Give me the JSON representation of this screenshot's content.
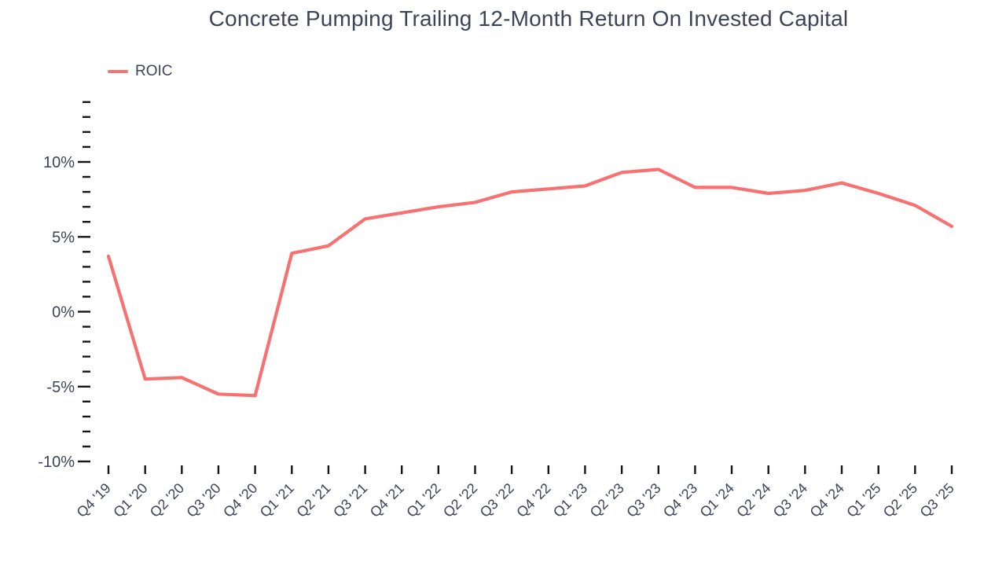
{
  "page": {
    "background": "#ffffff"
  },
  "chart": {
    "title": "Concrete Pumping Trailing 12-Month Return On Invested Capital",
    "legend": [
      {
        "label": "ROIC",
        "color": "#F87171"
      }
    ]
  },
  "chart_data": {
    "type": "line",
    "title": "Concrete Pumping Trailing 12-Month Return On Invested Capital",
    "categories": [
      "Q4 '19",
      "Q1 '20",
      "Q2 '20",
      "Q3 '20",
      "Q4 '20",
      "Q1 '21",
      "Q2 '21",
      "Q3 '21",
      "Q4 '21",
      "Q1 '22",
      "Q2 '22",
      "Q3 '22",
      "Q4 '22",
      "Q1 '23",
      "Q2 '23",
      "Q3 '23",
      "Q4 '23",
      "Q1 '24",
      "Q2 '24",
      "Q3 '24",
      "Q4 '24",
      "Q1 '25",
      "Q2 '25",
      "Q3 '25"
    ],
    "series": [
      {
        "name": "ROIC",
        "color": "#F87171",
        "values": [
          3.7,
          -4.5,
          -4.4,
          -5.5,
          -5.6,
          3.9,
          4.4,
          6.2,
          6.6,
          7.0,
          7.3,
          8.0,
          8.2,
          8.4,
          9.3,
          9.5,
          8.3,
          8.3,
          7.9,
          8.1,
          8.6,
          7.9,
          7.1,
          5.7
        ]
      }
    ],
    "xlabel": "",
    "ylabel": "",
    "ylim": [
      -10,
      14
    ],
    "yticks": [
      {
        "value": 10,
        "label": "10%"
      },
      {
        "value": 5,
        "label": "5%"
      },
      {
        "value": 0,
        "label": "0%"
      },
      {
        "value": -5,
        "label": "-5%"
      },
      {
        "value": -10,
        "label": "-10%"
      }
    ],
    "ytick_minor_step": 1,
    "grid": "off",
    "legend_position": "top-left",
    "tick_color": "#161616",
    "text_color": "#3C4457"
  }
}
